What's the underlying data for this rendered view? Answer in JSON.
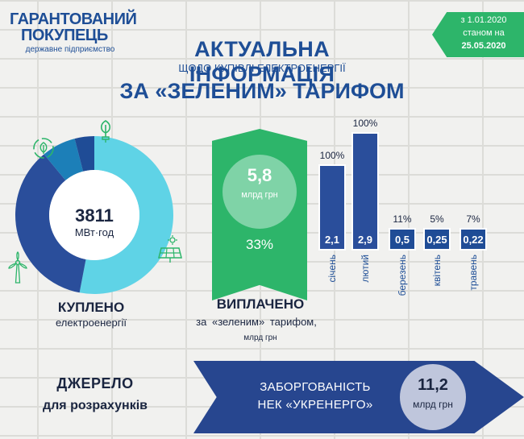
{
  "logo": {
    "line1": "ГАРАНТОВАНИЙ",
    "line2": "ПОКУПЕЦЬ",
    "line3": "державне підприємство"
  },
  "header": {
    "title": "АКТУАЛЬНА ІНФОРМАЦІЯ",
    "subtitle": "ЩОДО КУПІВЛІ ЕЛЕКТРОЕНЕРГІЇ",
    "title2": "ЗА «ЗЕЛЕНИМ» ТАРИФОМ"
  },
  "date_banner": {
    "line1": "з 1.01.2020",
    "line2": "станом на",
    "line3": "25.05.2020"
  },
  "bought": {
    "value": "3811",
    "unit": "МВт·год",
    "title": "КУПЛЕНО",
    "subtitle": "електроенергії"
  },
  "paid": {
    "value": "5,8",
    "unit": "млрд грн",
    "percent": "33%",
    "title": "ВИПЛАЧЕНО",
    "subtitle": "за  «зеленим»  тарифом,",
    "unit2": "млрд грн"
  },
  "source": {
    "line1": "ДЖЕРЕЛО",
    "line2": "для розрахунків"
  },
  "debt": {
    "line1": "ЗАБОРГОВАНІСТЬ",
    "line2": "НЕК «УКРЕНЕРГО»",
    "value": "11,2",
    "unit": "млрд грн"
  },
  "icons": [
    "plug-leaf-icon",
    "recycle-leaf-icon",
    "solar-panel-icon",
    "wind-turbine-icon"
  ],
  "colors": {
    "navy": "#27468f",
    "green": "#2db56a",
    "light_blue": "#5fd3e6",
    "mid_blue": "#1c7fb8",
    "dark_blue": "#2a4e9b"
  },
  "chart_data": [
    {
      "type": "pie",
      "donut": true,
      "title": "",
      "slices": [
        {
          "value": 0.53,
          "color": "#5fd3e6"
        },
        {
          "value": 0.36,
          "color": "#2a4e9b"
        },
        {
          "value": 0.07,
          "color": "#1c7fb8"
        },
        {
          "value": 0.04,
          "color": "#1f4c96"
        }
      ]
    },
    {
      "type": "bar",
      "title": "",
      "categories": [
        "січень",
        "лютий",
        "березень",
        "квітень",
        "травень"
      ],
      "values": [
        2.1,
        2.9,
        0.5,
        0.25,
        0.22
      ],
      "value_labels": [
        "2,1",
        "2,9",
        "0,5",
        "0,25",
        "0,22"
      ],
      "percent_labels": [
        "100%",
        "100%",
        "11%",
        "5%",
        "7%"
      ],
      "ylim": [
        0,
        3
      ]
    }
  ]
}
